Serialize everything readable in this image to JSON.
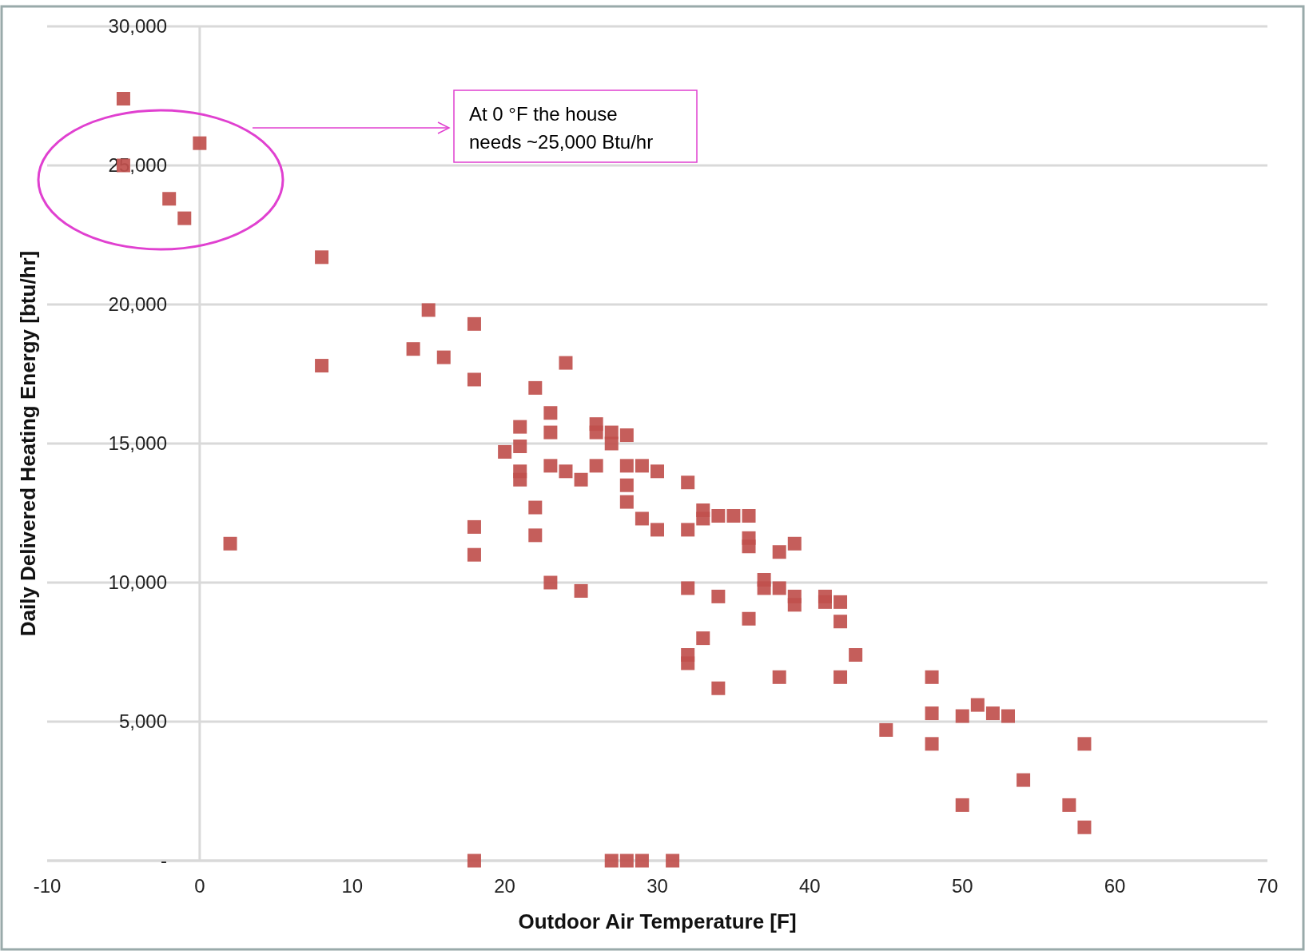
{
  "chart_data": {
    "type": "scatter",
    "xlabel": "Outdoor Air Temperature [F]",
    "ylabel": "Daily Delivered Heating Energy [btu/hr]",
    "annotations": [
      "At 0 °F the house needs ~25,000 Btu/hr"
    ],
    "xlim": [
      -10,
      70
    ],
    "xticks": [
      -10,
      0,
      10,
      20,
      30,
      40,
      50,
      60,
      70
    ],
    "ylim": [
      0,
      30000
    ],
    "yticks": [
      {
        "value": 0,
        "label": "-"
      },
      {
        "value": 5000,
        "label": "5,000"
      },
      {
        "value": 10000,
        "label": "10,000"
      },
      {
        "value": 15000,
        "label": "15,000"
      },
      {
        "value": 20000,
        "label": "20,000"
      },
      {
        "value": 25000,
        "label": "25,000"
      },
      {
        "value": 30000,
        "label": "30,000"
      }
    ],
    "grid": "y",
    "marker": "square",
    "series": [
      {
        "color": "#c0504d",
        "x": [
          -5,
          -5,
          0,
          -2,
          -1,
          8,
          8,
          2,
          15,
          14,
          16,
          18,
          18,
          24,
          18,
          18,
          22,
          23,
          23,
          21,
          21,
          20,
          21,
          21,
          23,
          24,
          25,
          26,
          26,
          26,
          27,
          27,
          28,
          28,
          29,
          30,
          28,
          28,
          29,
          30,
          22,
          22,
          23,
          25,
          32,
          32,
          33,
          33,
          34,
          35,
          36,
          36,
          36,
          38,
          39,
          32,
          34,
          37,
          37,
          38,
          39,
          39,
          41,
          41,
          42,
          42,
          36,
          33,
          32,
          32,
          34,
          38,
          42,
          43,
          48,
          48,
          48,
          45,
          50,
          51,
          52,
          53,
          54,
          50,
          57,
          58,
          58,
          18,
          27,
          28,
          29,
          31
        ],
        "values": [
          27400,
          25000,
          25800,
          23800,
          23100,
          21700,
          17800,
          11400,
          19800,
          18400,
          18100,
          19300,
          17300,
          17900,
          12000,
          11000,
          17000,
          16100,
          15400,
          15600,
          14900,
          14700,
          14000,
          13700,
          14200,
          14000,
          13700,
          14200,
          15700,
          15400,
          15400,
          15000,
          15300,
          14200,
          14200,
          14000,
          13500,
          12900,
          12300,
          11900,
          12700,
          11700,
          10000,
          9700,
          13600,
          11900,
          12600,
          12300,
          12400,
          12400,
          12400,
          11600,
          11300,
          11100,
          11400,
          9800,
          9500,
          10100,
          9800,
          9800,
          9500,
          9200,
          9500,
          9300,
          9300,
          8600,
          8700,
          8000,
          7400,
          7100,
          6200,
          6600,
          6600,
          7400,
          6600,
          5300,
          4200,
          4700,
          5200,
          5600,
          5300,
          5200,
          2900,
          2000,
          2000,
          4200,
          1200,
          0,
          0,
          0,
          0,
          0
        ]
      }
    ]
  }
}
